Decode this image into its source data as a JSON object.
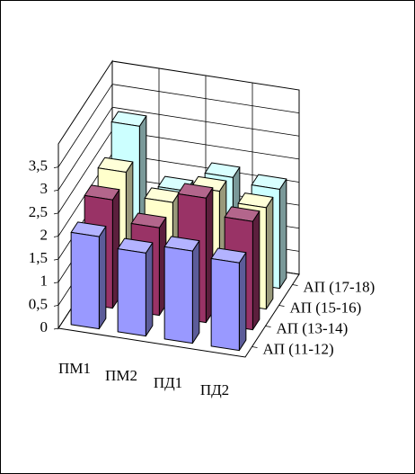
{
  "chart_data": {
    "type": "bar3d",
    "categories": [
      "ПМ1",
      "ПМ2",
      "ПД1",
      "ПД2"
    ],
    "series": [
      {
        "name": "АП (11-12)",
        "color": "#9999ff",
        "values": [
          2.0,
          1.8,
          2.0,
          1.9
        ]
      },
      {
        "name": "АП (13-14)",
        "color": "#993366",
        "values": [
          2.35,
          1.9,
          2.7,
          2.35
        ]
      },
      {
        "name": "АП (15-16)",
        "color": "#ffffcc",
        "values": [
          2.5,
          2.0,
          2.4,
          2.2
        ]
      },
      {
        "name": "АП (17-18)",
        "color": "#ccffff",
        "values": [
          3.05,
          1.8,
          2.25,
          2.15
        ]
      }
    ],
    "ylim": [
      0,
      4
    ],
    "yticks": [
      0,
      {
        "value": 0.5,
        "label": "0,5"
      },
      1,
      {
        "value": 1.5,
        "label": "1,5"
      },
      2,
      {
        "value": 2.5,
        "label": "2,5"
      },
      3,
      {
        "value": 3.5,
        "label": "3,5"
      }
    ],
    "grid": true
  }
}
